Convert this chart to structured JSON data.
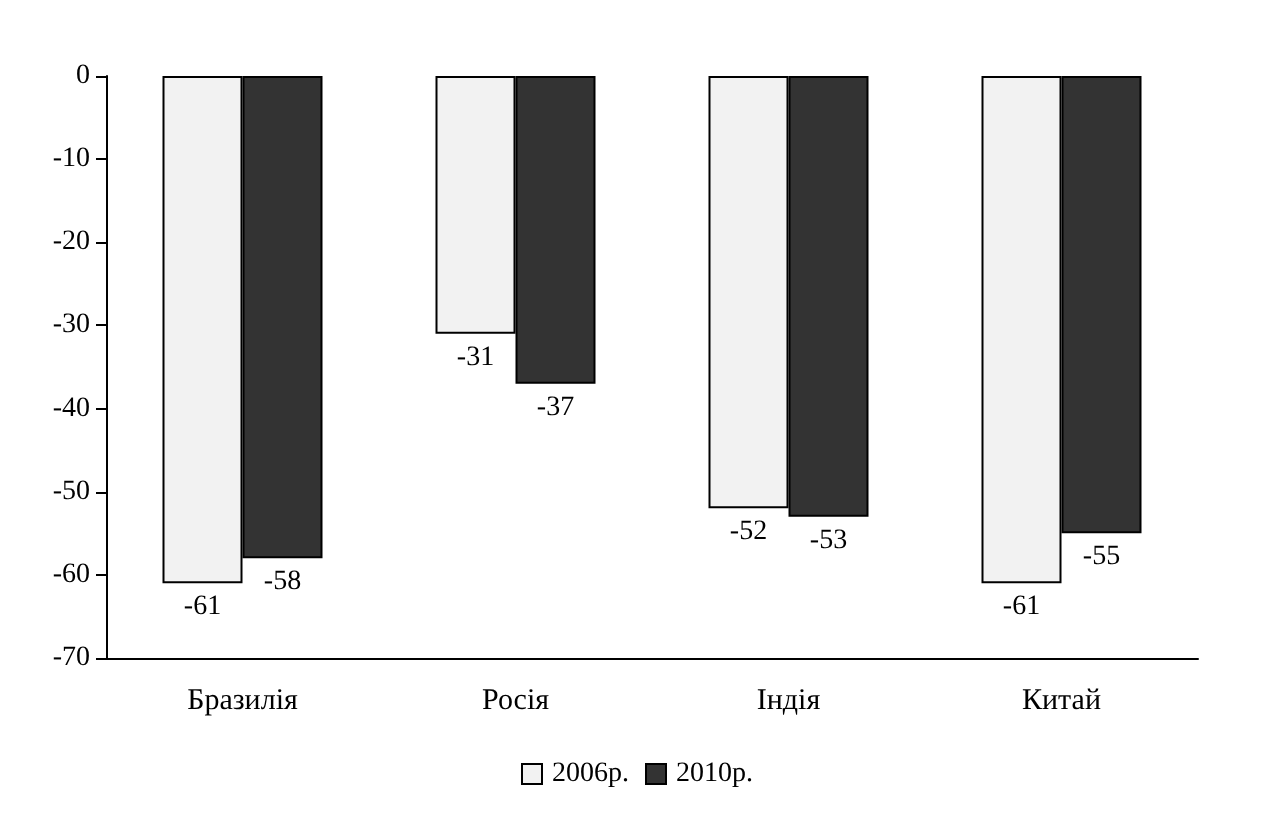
{
  "chart_data": {
    "type": "bar",
    "categories": [
      "Бразилія",
      "Росія",
      "Індія",
      "Китай"
    ],
    "series": [
      {
        "name": "2006р.",
        "color": "#f2f2f2",
        "values": [
          -61,
          -31,
          -52,
          -61
        ]
      },
      {
        "name": "2010р.",
        "color": "#333333",
        "values": [
          -58,
          -37,
          -53,
          -55
        ]
      }
    ],
    "ylim": [
      -70,
      0
    ],
    "yticks": [
      0,
      -10,
      -20,
      -30,
      -40,
      -50,
      -60,
      -70
    ],
    "data_labels": true,
    "legend": "bottom",
    "grid": false
  }
}
